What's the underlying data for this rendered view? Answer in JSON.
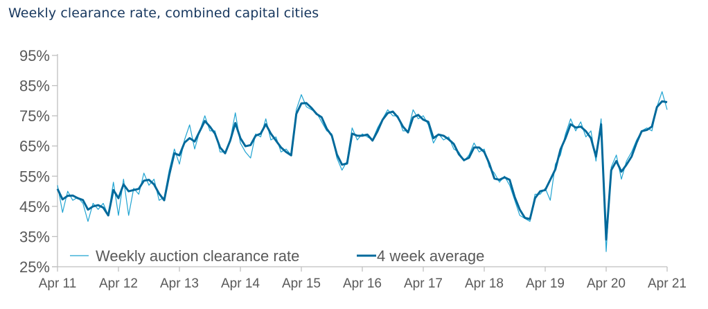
{
  "chart_data": {
    "type": "line",
    "title": "Weekly clearance rate, combined capital cities",
    "xlabel": "",
    "ylabel": "",
    "ylim": [
      25,
      95
    ],
    "yticks": [
      "25%",
      "35%",
      "45%",
      "55%",
      "65%",
      "75%",
      "85%",
      "95%"
    ],
    "ytick_values": [
      25,
      35,
      45,
      55,
      65,
      75,
      85,
      95
    ],
    "xticks": [
      "Apr 11",
      "Apr 12",
      "Apr 13",
      "Apr 14",
      "Apr 15",
      "Apr 16",
      "Apr 17",
      "Apr 18",
      "Apr 19",
      "Apr 20",
      "Apr 21"
    ],
    "xtick_values": [
      "2011-04",
      "2012-04",
      "2013-04",
      "2014-04",
      "2015-04",
      "2016-04",
      "2017-04",
      "2018-04",
      "2019-04",
      "2020-04",
      "2021-04"
    ],
    "xlim": [
      "2011-04",
      "2021-04"
    ],
    "grid": false,
    "legend": "bottom",
    "x": [
      "2011-04",
      "2011-05",
      "2011-06",
      "2011-07",
      "2011-08",
      "2011-09",
      "2011-10",
      "2011-11",
      "2011-12",
      "2012-01",
      "2012-02",
      "2012-03",
      "2012-04",
      "2012-05",
      "2012-06",
      "2012-07",
      "2012-08",
      "2012-09",
      "2012-10",
      "2012-11",
      "2012-12",
      "2013-01",
      "2013-02",
      "2013-03",
      "2013-04",
      "2013-05",
      "2013-06",
      "2013-07",
      "2013-08",
      "2013-09",
      "2013-10",
      "2013-11",
      "2013-12",
      "2014-01",
      "2014-02",
      "2014-03",
      "2014-04",
      "2014-05",
      "2014-06",
      "2014-07",
      "2014-08",
      "2014-09",
      "2014-10",
      "2014-11",
      "2014-12",
      "2015-01",
      "2015-02",
      "2015-03",
      "2015-04",
      "2015-05",
      "2015-06",
      "2015-07",
      "2015-08",
      "2015-09",
      "2015-10",
      "2015-11",
      "2015-12",
      "2016-01",
      "2016-02",
      "2016-03",
      "2016-04",
      "2016-05",
      "2016-06",
      "2016-07",
      "2016-08",
      "2016-09",
      "2016-10",
      "2016-11",
      "2016-12",
      "2017-01",
      "2017-02",
      "2017-03",
      "2017-04",
      "2017-05",
      "2017-06",
      "2017-07",
      "2017-08",
      "2017-09",
      "2017-10",
      "2017-11",
      "2017-12",
      "2018-01",
      "2018-02",
      "2018-03",
      "2018-04",
      "2018-05",
      "2018-06",
      "2018-07",
      "2018-08",
      "2018-09",
      "2018-10",
      "2018-11",
      "2018-12",
      "2019-01",
      "2019-02",
      "2019-03",
      "2019-04",
      "2019-05",
      "2019-06",
      "2019-07",
      "2019-08",
      "2019-09",
      "2019-10",
      "2019-11",
      "2019-12",
      "2020-01",
      "2020-02",
      "2020-03",
      "2020-04",
      "2020-05",
      "2020-06",
      "2020-07",
      "2020-08",
      "2020-09",
      "2020-10",
      "2020-11",
      "2020-12",
      "2021-01",
      "2021-02",
      "2021-03",
      "2021-04"
    ],
    "series": [
      {
        "name": "Weekly auction clearance rate",
        "color": "#1fa3d1",
        "values": [
          52,
          43,
          50,
          47,
          48,
          46,
          40,
          46,
          44,
          46,
          42,
          53,
          42,
          54,
          42,
          51,
          49,
          56,
          52,
          54,
          47,
          48,
          57,
          64,
          59,
          67,
          72,
          64,
          70,
          75,
          70,
          70,
          63,
          63,
          67,
          76,
          66,
          63,
          61,
          69,
          68,
          74,
          67,
          68,
          63,
          64,
          62,
          77,
          82,
          78,
          77,
          76,
          73,
          70,
          69,
          61,
          57,
          60,
          71,
          67,
          69,
          68,
          67,
          71,
          74,
          77,
          75,
          75,
          70,
          70,
          77,
          74,
          75,
          72,
          66,
          69,
          67,
          68,
          64,
          63,
          60,
          62,
          66,
          63,
          64,
          58,
          56,
          53,
          55,
          52,
          47,
          42,
          41,
          40,
          49,
          49,
          51,
          47,
          59,
          62,
          69,
          74,
          70,
          73,
          68,
          70,
          60,
          74,
          30,
          58,
          62,
          54,
          60,
          63,
          67,
          70,
          71,
          70,
          78,
          83,
          77
        ]
      },
      {
        "name": "4 week average",
        "color": "#00699b",
        "values": [
          50.8,
          47.3,
          48.5,
          48.6,
          47.7,
          47.1,
          43.9,
          45.0,
          45.4,
          44.6,
          42.0,
          50.4,
          47.7,
          52.3,
          50.0,
          50.4,
          50.8,
          53.5,
          53.8,
          52.3,
          49.2,
          47.0,
          55.4,
          62.6,
          61.9,
          66.1,
          67.6,
          66.5,
          69.9,
          73.3,
          71.4,
          69.1,
          64.5,
          62.6,
          66.8,
          72.6,
          67.6,
          64.9,
          65.3,
          68.4,
          69.1,
          72.2,
          69.1,
          66.8,
          64.5,
          63.0,
          61.9,
          75.6,
          79.1,
          79.2,
          77.6,
          75.6,
          74.5,
          70.7,
          68.4,
          62.2,
          58.8,
          59.2,
          69.1,
          68.4,
          68.4,
          68.8,
          66.8,
          69.9,
          73.7,
          75.9,
          76.4,
          74.5,
          71.4,
          69.5,
          74.5,
          75.3,
          73.7,
          73.0,
          67.6,
          68.8,
          68.4,
          67.2,
          65.7,
          62.3,
          60.3,
          61.1,
          64.5,
          64.5,
          63.0,
          59.2,
          54.2,
          53.8,
          54.6,
          53.8,
          48.1,
          43.9,
          41.2,
          40.8,
          47.7,
          50.0,
          50.4,
          53.8,
          57.3,
          63.8,
          67.6,
          72.2,
          71.1,
          71.4,
          69.9,
          67.6,
          61.5,
          72.2,
          34.0,
          57.0,
          60.0,
          56.5,
          58.8,
          61.5,
          66.1,
          69.9,
          70.3,
          71.4,
          77.9,
          79.8,
          79.5
        ]
      }
    ]
  }
}
